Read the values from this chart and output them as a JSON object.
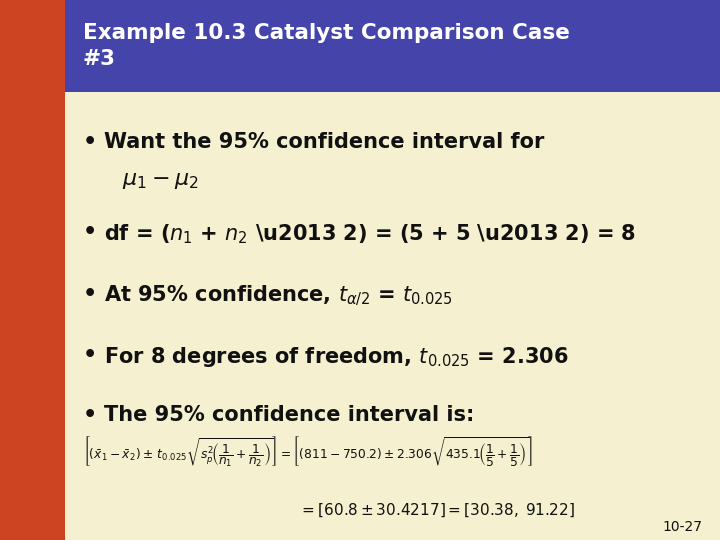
{
  "title_line1": "Example 10.3 Catalyst Comparison Case",
  "title_line2": "#3",
  "title_bg": "#4444AA",
  "title_color": "#FFFFFF",
  "left_bar_color": "#CC4422",
  "body_bg": "#F5F0D0",
  "bullet_color": "#111111",
  "page_number": "10-27"
}
